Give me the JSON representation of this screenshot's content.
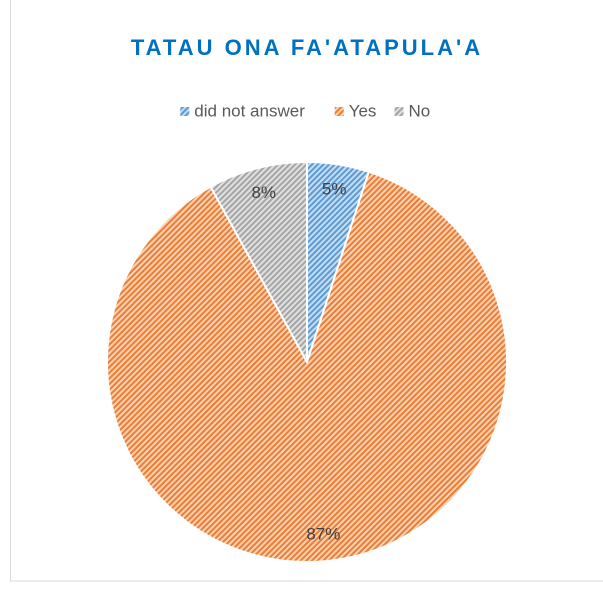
{
  "chart_data": {
    "type": "pie",
    "title": "TATAU ONA FA'ATAPULA'A",
    "categories": [
      "did not answer",
      "Yes",
      "No"
    ],
    "values": [
      5,
      87,
      8
    ],
    "value_labels": [
      "5%",
      "87%",
      "8%"
    ],
    "colors": [
      "#5b9bd5",
      "#ed7d31",
      "#a5a5a5"
    ],
    "legend": "top"
  }
}
